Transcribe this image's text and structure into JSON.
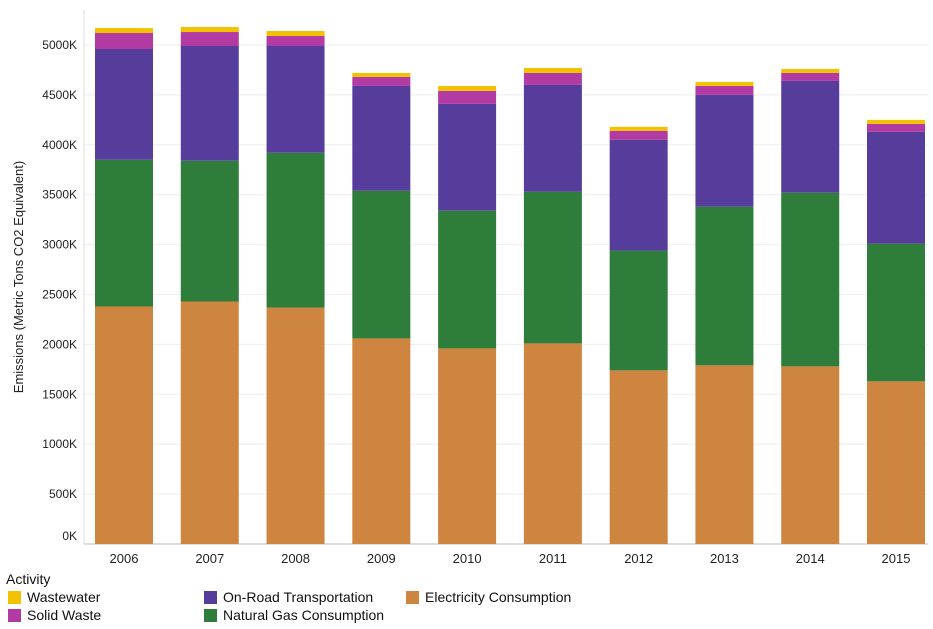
{
  "chart_data": {
    "type": "bar",
    "stacked": true,
    "title": "",
    "xlabel": "",
    "ylabel": "Emissions (Metric Tons CO2 Equivalent)",
    "ylim": [
      0,
      5300
    ],
    "y_ticks": [
      0,
      500,
      1000,
      1500,
      2000,
      2500,
      3000,
      3500,
      4000,
      4500,
      5000
    ],
    "y_tick_labels": [
      "0K",
      "500K",
      "1000K",
      "1500K",
      "2000K",
      "2500K",
      "3000K",
      "3500K",
      "4000K",
      "4500K",
      "5000K"
    ],
    "categories": [
      "2006",
      "2007",
      "2008",
      "2009",
      "2010",
      "2011",
      "2012",
      "2013",
      "2014",
      "2015"
    ],
    "series": [
      {
        "name": "Electricity Consumption",
        "color": "#cd853f",
        "values": [
          2380,
          2430,
          2370,
          2060,
          1960,
          2010,
          1740,
          1790,
          1780,
          1630
        ]
      },
      {
        "name": "Natural Gas Consumption",
        "color": "#2e7d3a",
        "values": [
          1470,
          1410,
          1550,
          1480,
          1380,
          1520,
          1200,
          1590,
          1740,
          1380
        ]
      },
      {
        "name": "On-Road Transportation",
        "color": "#563d9c",
        "values": [
          1110,
          1150,
          1070,
          1050,
          1070,
          1070,
          1110,
          1120,
          1120,
          1120
        ]
      },
      {
        "name": "Solid Waste",
        "color": "#b23aa3",
        "values": [
          160,
          140,
          100,
          90,
          130,
          120,
          90,
          90,
          80,
          80
        ]
      },
      {
        "name": "Wastewater",
        "color": "#f2c200",
        "values": [
          50,
          50,
          50,
          40,
          50,
          50,
          40,
          40,
          40,
          40
        ]
      }
    ]
  },
  "legend": {
    "title": "Activity",
    "items": [
      {
        "label": "Wastewater",
        "color": "#f2c200"
      },
      {
        "label": "Solid Waste",
        "color": "#b23aa3"
      },
      {
        "label": "On-Road Transportation",
        "color": "#563d9c"
      },
      {
        "label": "Natural Gas Consumption",
        "color": "#2e7d3a"
      },
      {
        "label": "Electricity Consumption",
        "color": "#cd853f"
      }
    ]
  }
}
